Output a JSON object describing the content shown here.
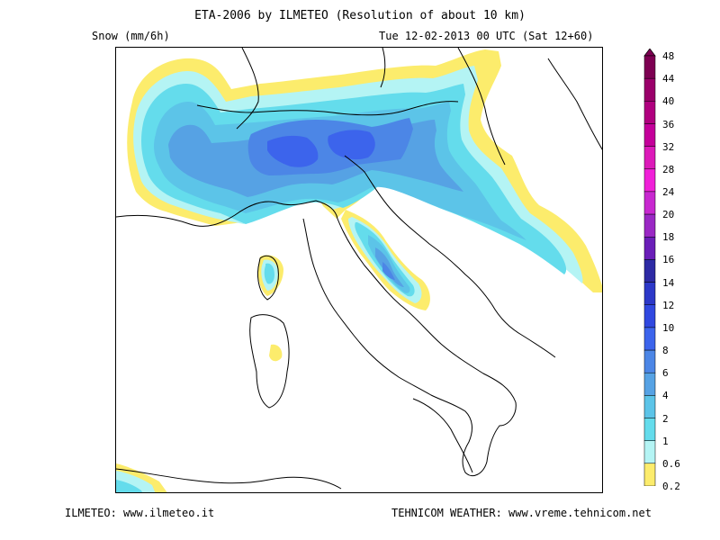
{
  "header": {
    "title": "ETA-2006 by ILMETEO (Resolution of about 10 km)",
    "variable": "Snow (mm/6h)",
    "valid_time": "Tue 12-02-2013 00 UTC (Sat 12+60)"
  },
  "footer": {
    "left": "ILMETEO: www.ilmeteo.it",
    "right": "TEHNICOM WEATHER: www.vreme.tehnicom.net"
  },
  "legend": {
    "labels": [
      "48",
      "44",
      "40",
      "36",
      "32",
      "28",
      "24",
      "20",
      "18",
      "16",
      "14",
      "12",
      "10",
      "8",
      "6",
      "4",
      "2",
      "1",
      "0.6",
      "0.2"
    ],
    "colors": [
      "#7d0052",
      "#9a006a",
      "#b0007f",
      "#c4009a",
      "#dc1ab9",
      "#f020d8",
      "#c828d0",
      "#9a28c4",
      "#6a1eb8",
      "#2d2aa4",
      "#2c38c8",
      "#3048e0",
      "#3c64ec",
      "#4c86e6",
      "#56a2e4",
      "#5cc4e8",
      "#64dcec",
      "#b4f4f4",
      "#fcec6c"
    ]
  },
  "map": {
    "region": "Italy and surroundings",
    "field": "snowfall accumulation",
    "colors": {
      "light_yellow": "#fcec6c",
      "pale_cyan": "#b4f4f4",
      "cyan": "#64dcec",
      "light_blue": "#5cc4e8",
      "mid_blue": "#56a2e4",
      "blue": "#4c86e6",
      "deep_blue": "#3c64ec",
      "border": "#000000"
    }
  }
}
